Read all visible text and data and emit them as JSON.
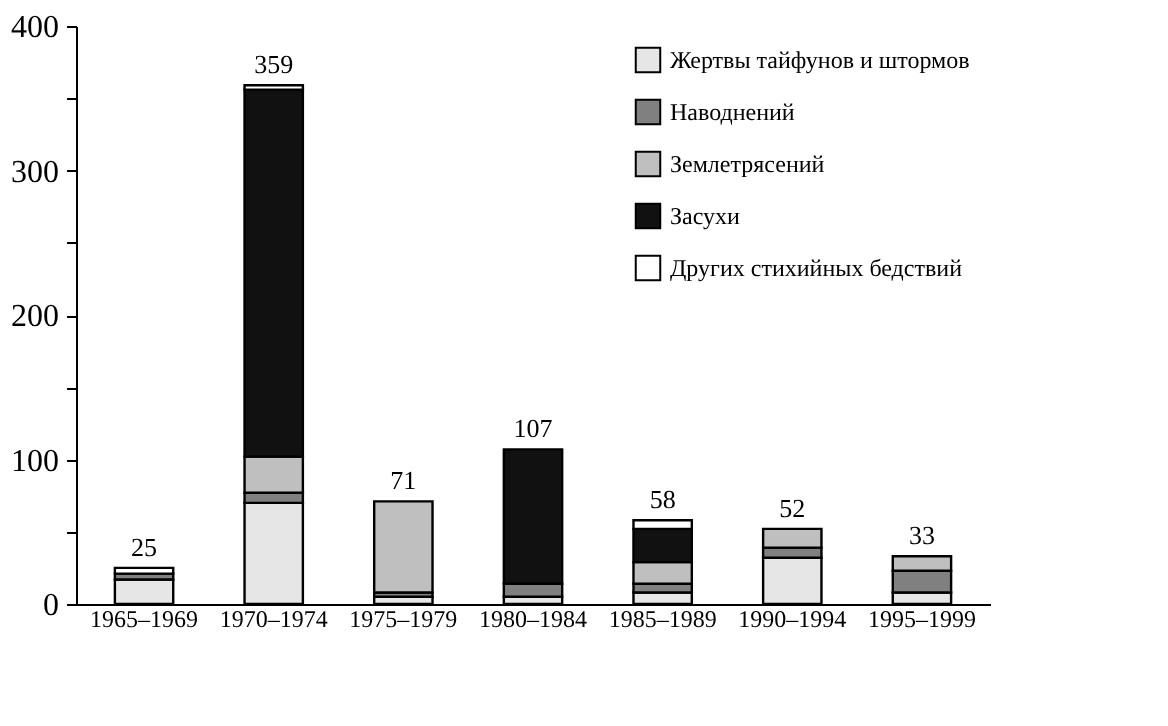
{
  "chart_data": {
    "type": "bar",
    "stacked": true,
    "categories": [
      "1965–1969",
      "1970–1974",
      "1975–1979",
      "1980–1984",
      "1985–1989",
      "1990–1994",
      "1995–1999"
    ],
    "series": [
      {
        "name": "Жертвы тайфунов и штормов",
        "color": "#e6e6e6",
        "values": [
          17,
          70,
          5,
          5,
          8,
          32,
          8
        ]
      },
      {
        "name": "Наводнений",
        "color": "#808080",
        "values": [
          4,
          7,
          3,
          9,
          6,
          7,
          15
        ]
      },
      {
        "name": "Землетрясений",
        "color": "#bfbfbf",
        "values": [
          0,
          25,
          63,
          0,
          15,
          13,
          10
        ]
      },
      {
        "name": "Засухи",
        "color": "#111111",
        "values": [
          0,
          254,
          0,
          93,
          23,
          0,
          0
        ]
      },
      {
        "name": "Других стихийных бедствий",
        "color": "#ffffff",
        "values": [
          4,
          3,
          0,
          0,
          6,
          0,
          null
        ]
      }
    ],
    "totals": [
      "25",
      "359",
      "71",
      "107",
      "58",
      "52",
      "33"
    ],
    "ylim": [
      0,
      400
    ],
    "yticks": [
      0,
      {
        "value": 50,
        "label": null
      },
      100,
      {
        "value": 150,
        "label": null
      },
      200,
      {
        "value": 250,
        "label": null
      },
      300,
      {
        "value": 350,
        "label": null
      },
      400
    ],
    "grid": false,
    "legend": "top right"
  }
}
